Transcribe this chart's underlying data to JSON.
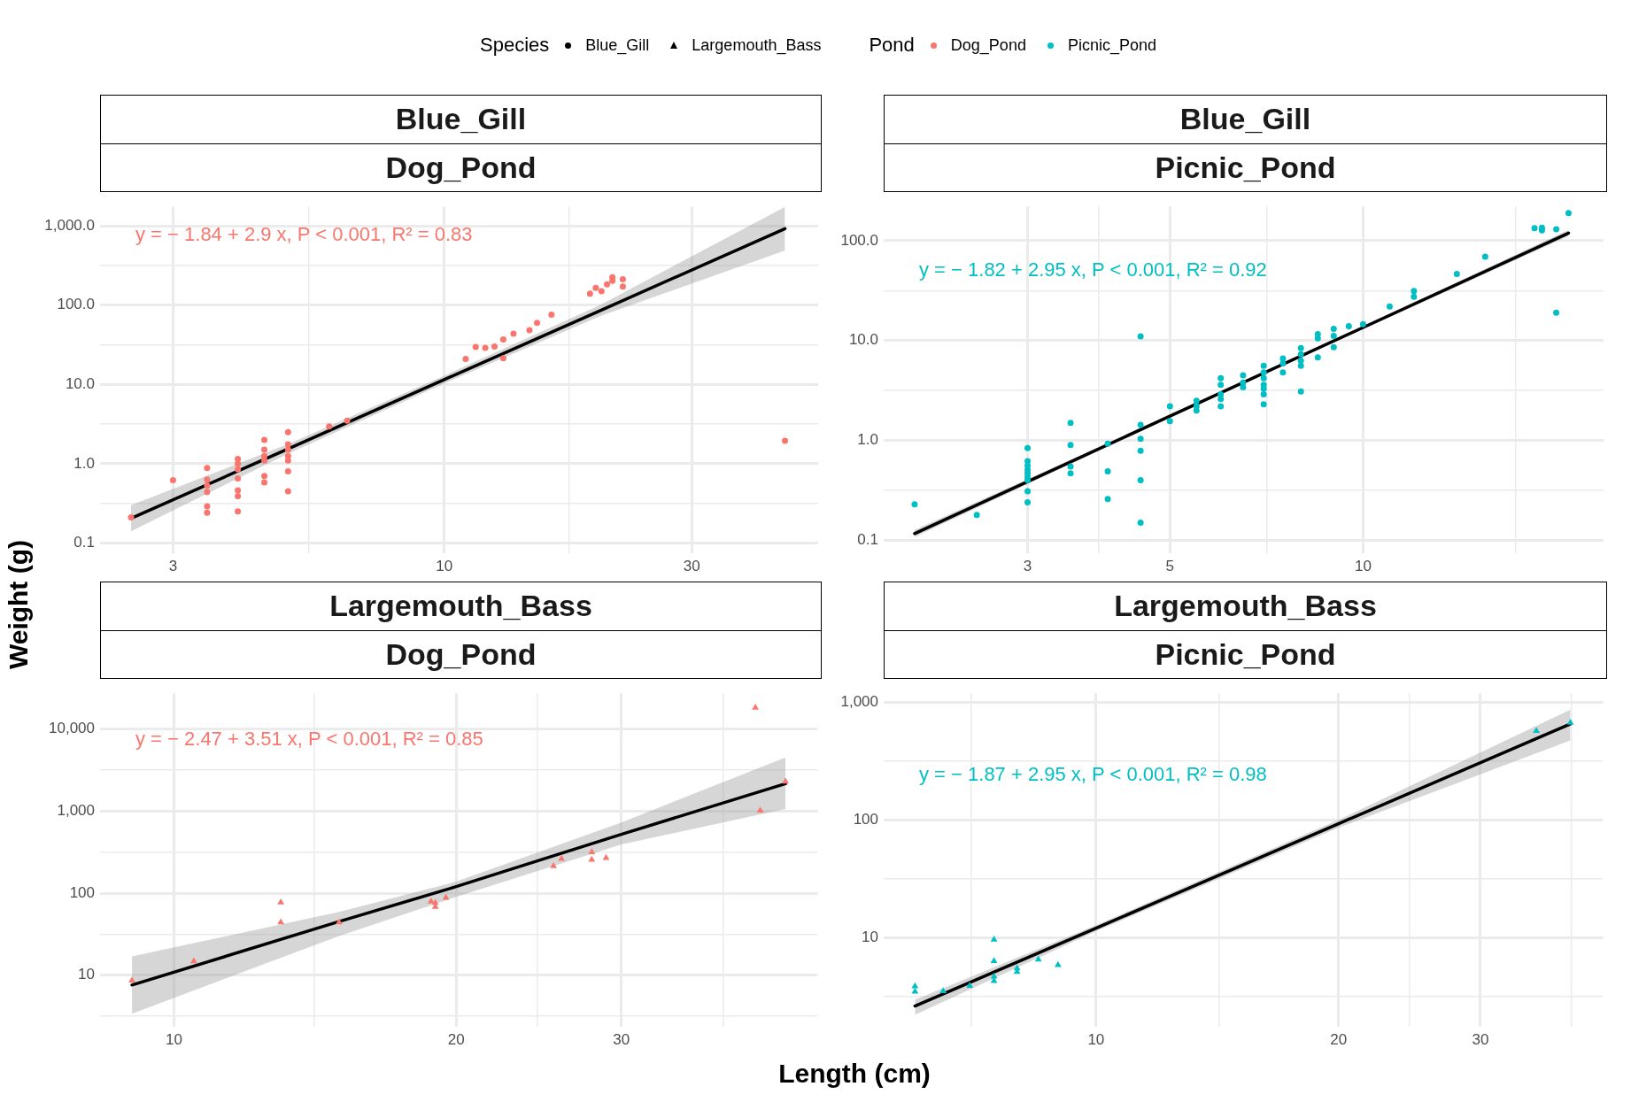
{
  "chart_data": [
    {
      "type": "scatter",
      "title": "Blue_Gill",
      "subtitle": "Dog_Pond",
      "ylabel": "Weight (g)",
      "legend": "top",
      "legend_title": "Species",
      "marker": "circle",
      "log": "xy",
      "grid": true,
      "xlim": [
        2.17,
        52.6
      ],
      "ylim": [
        0.075,
        1762
      ],
      "xticks": [
        3,
        {
          "value": 5.48,
          "label": null
        },
        10,
        {
          "value": 17.4,
          "label": null
        },
        30
      ],
      "yticks": [
        {
          "value": 0.1,
          "label": "0.1"
        },
        {
          "value": 0.316,
          "label": null
        },
        {
          "value": 1,
          "label": "1.0"
        },
        {
          "value": 3.16,
          "label": null
        },
        {
          "value": 10,
          "label": "10.0"
        },
        {
          "value": 31.6,
          "label": null
        },
        {
          "value": 100,
          "label": "100.0"
        },
        {
          "value": 316,
          "label": null
        },
        {
          "value": 1000,
          "label": "1,000.0"
        }
      ],
      "annotations": [
        "y = − 1.84 + 2.9 x, P < 0.001, R² = 0.83"
      ],
      "series": [
        {
          "type": "scatter",
          "name": "Dog_Pond",
          "color": "#f8766d",
          "x": [
            2.49,
            3,
            3.49,
            3.49,
            3.49,
            3.49,
            3.49,
            3.49,
            4,
            4,
            4,
            4,
            4,
            4,
            4,
            4.5,
            4.5,
            4.5,
            4.5,
            4.5,
            4.5,
            5,
            5,
            5,
            5,
            5,
            5,
            5,
            6,
            6.5,
            11,
            11.5,
            12,
            12.5,
            13,
            13,
            13.6,
            14.6,
            15.1,
            16.1,
            19.1,
            19.6,
            20.1,
            20.6,
            21.1,
            21.1,
            22.1,
            22.1,
            45.4
          ],
          "values": [
            0.21,
            0.62,
            0.88,
            0.63,
            0.53,
            0.44,
            0.29,
            0.24,
            1.15,
            1,
            0.85,
            0.65,
            0.46,
            0.39,
            0.25,
            2,
            1.5,
            1.25,
            1.1,
            0.7,
            0.58,
            2.5,
            1.75,
            1.5,
            1.25,
            1.1,
            0.8,
            0.45,
            2.95,
            3.5,
            21,
            29.7,
            29,
            30,
            37,
            21.4,
            43.8,
            48.5,
            60,
            76,
            140,
            165,
            150,
            183,
            203,
            225,
            212,
            172,
            1.94
          ]
        },
        {
          "type": "line",
          "marker": "none",
          "color": "#000000",
          "x": [
            2.49,
            5,
            10,
            20,
            45.4
          ],
          "values": [
            0.204,
            1.54,
            11.5,
            85.7,
            922
          ],
          "lower": [
            0.14,
            1.34,
            10.3,
            73,
            490
          ],
          "upper": [
            0.3,
            1.77,
            12.9,
            101,
            1735
          ]
        }
      ]
    },
    {
      "type": "scatter",
      "title": "Blue_Gill",
      "subtitle": "Picnic_Pond",
      "legend": "top",
      "legend_title": "Pond",
      "marker": "circle",
      "log": "xy",
      "grid": true,
      "xlim": [
        1.79,
        23.7
      ],
      "ylim": [
        0.075,
        220
      ],
      "xticks": [
        3,
        {
          "value": 3.87,
          "label": null
        },
        5,
        {
          "value": 7.07,
          "label": null
        },
        10,
        {
          "value": 17.3,
          "label": null
        }
      ],
      "yticks": [
        {
          "value": 0.1,
          "label": "0.1"
        },
        {
          "value": 0.316,
          "label": null
        },
        {
          "value": 1,
          "label": "1.0"
        },
        {
          "value": 3.16,
          "label": null
        },
        {
          "value": 10,
          "label": "10.0"
        },
        {
          "value": 31.6,
          "label": null
        },
        {
          "value": 100,
          "label": "100.0"
        }
      ],
      "annotations": [
        "y = − 1.82 + 2.95 x, P < 0.001, R² = 0.92"
      ],
      "series": [
        {
          "type": "scatter",
          "name": "Picnic_Pond",
          "color": "#00bfc4",
          "x": [
            2,
            2.5,
            3,
            3,
            3,
            3,
            3,
            3,
            3,
            3,
            3,
            3.5,
            3.5,
            3.5,
            3.5,
            4,
            4,
            4,
            4.5,
            4.5,
            4.5,
            4.5,
            4.5,
            4.5,
            5,
            5,
            5.5,
            5.5,
            5.5,
            6,
            6,
            6,
            6,
            6,
            6.5,
            6.5,
            6.5,
            7,
            7,
            7,
            7,
            7,
            7,
            7,
            7.5,
            7.5,
            7.5,
            8,
            8,
            8,
            8,
            8,
            8.5,
            8.5,
            8.5,
            9,
            9,
            9,
            9.5,
            10,
            11,
            12,
            12,
            14,
            15.5,
            18.5,
            19,
            19,
            20,
            20,
            20.9
          ],
          "values": [
            0.23,
            0.18,
            0.84,
            0.62,
            0.56,
            0.51,
            0.47,
            0.43,
            0.4,
            0.31,
            0.24,
            1.5,
            0.9,
            0.55,
            0.47,
            0.93,
            0.49,
            0.26,
            11,
            1.43,
            1.04,
            0.79,
            0.4,
            0.15,
            2.2,
            1.56,
            2.5,
            2.2,
            2,
            4.2,
            3.6,
            2.9,
            2.6,
            2.2,
            4.5,
            3.8,
            3.4,
            5.6,
            4.8,
            4.2,
            3.6,
            3.3,
            2.9,
            2.3,
            6.6,
            5.9,
            4.8,
            8.4,
            7.3,
            6.3,
            5.6,
            3.1,
            11.6,
            10.5,
            6.8,
            13.1,
            11.1,
            8.6,
            13.9,
            14.6,
            21.9,
            31.3,
            27.4,
            46.5,
            69,
            133,
            135,
            127,
            130,
            19,
            189
          ]
        },
        {
          "type": "line",
          "marker": "none",
          "color": "#000000",
          "x": [
            2,
            5,
            10,
            20.9
          ],
          "values": [
            0.117,
            1.75,
            13.5,
            119
          ],
          "lower": [
            0.108,
            1.7,
            13,
            111
          ],
          "upper": [
            0.127,
            1.8,
            14,
            128
          ]
        }
      ]
    },
    {
      "type": "scatter",
      "title": "Largemouth_Bass",
      "subtitle": "Dog_Pond",
      "xlabel": "Length (cm)",
      "marker": "triangle",
      "log": "xy",
      "grid": true,
      "xlim": [
        8.34,
        48.6
      ],
      "ylim": [
        2.38,
        27200
      ],
      "xticks": [
        10,
        {
          "value": 14.1,
          "label": null
        },
        20,
        {
          "value": 24.4,
          "label": null
        },
        30,
        {
          "value": 38.5,
          "label": null
        }
      ],
      "yticks": [
        {
          "value": 3.16,
          "label": null
        },
        {
          "value": 10,
          "label": "10"
        },
        {
          "value": 31.6,
          "label": null
        },
        {
          "value": 100,
          "label": "100"
        },
        {
          "value": 316,
          "label": null
        },
        {
          "value": 1000,
          "label": "1,000"
        },
        {
          "value": 3162,
          "label": null
        },
        {
          "value": 10000,
          "label": "10,000"
        }
      ],
      "annotations": [
        "y = − 2.47 + 3.51 x, P < 0.001, R² = 0.85"
      ],
      "series": [
        {
          "type": "scatter",
          "color": "#f8766d",
          "x": [
            9.02,
            10.5,
            13,
            13,
            15,
            18.8,
            19,
            19,
            19.5,
            25.4,
            25.9,
            27.9,
            27.9,
            28.9,
            41.7,
            42.2,
            44.9
          ],
          "values": [
            8.6,
            14.8,
            77,
            44,
            44,
            79,
            76,
            68,
            88,
            213,
            262,
            316,
            255,
            269,
            18100,
            1014,
            2290
          ]
        },
        {
          "type": "line",
          "marker": "none",
          "color": "#000000",
          "x": [
            9.02,
            15,
            20,
            30,
            44.9
          ],
          "values": [
            7.6,
            45,
            120,
            520,
            2150
          ],
          "lower": [
            3.4,
            30,
            90,
            392,
            1057
          ],
          "upper": [
            17,
            59,
            138,
            724,
            4500
          ]
        }
      ]
    },
    {
      "type": "scatter",
      "title": "Largemouth_Bass",
      "subtitle": "Picnic_Pond",
      "marker": "triangle",
      "log": "xy",
      "grid": true,
      "xlim": [
        5.45,
        42.6
      ],
      "ylim": [
        1.75,
        1197
      ],
      "xticks": [
        {
          "value": 7,
          "label": null
        },
        10,
        {
          "value": 14.2,
          "label": null
        },
        20,
        {
          "value": 24.5,
          "label": null
        },
        30,
        {
          "value": 38.9,
          "label": null
        }
      ],
      "yticks": [
        {
          "value": 3.16,
          "label": null
        },
        {
          "value": 10,
          "label": "10"
        },
        {
          "value": 31.6,
          "label": null
        },
        {
          "value": 100,
          "label": "100"
        },
        {
          "value": 316,
          "label": null
        },
        {
          "value": 1000,
          "label": "1,000"
        }
      ],
      "annotations": [
        "y = − 1.87 + 2.95 x, P < 0.001, R² = 0.98"
      ],
      "series": [
        {
          "type": "scatter",
          "color": "#00bfc4",
          "x": [
            5.96,
            5.96,
            6.46,
            6.97,
            7.47,
            7.47,
            7.47,
            7.47,
            7.98,
            7.98,
            8.48,
            8.97,
            35.2,
            38.8
          ],
          "values": [
            3.85,
            3.47,
            3.5,
            3.88,
            9.6,
            6.3,
            4.65,
            4.27,
            5.45,
            5.1,
            6.5,
            5.83,
            573,
            673
          ]
        },
        {
          "type": "line",
          "marker": "none",
          "color": "#000000",
          "x": [
            5.96,
            10,
            20,
            38.8
          ],
          "values": [
            2.61,
            12,
            92.9,
            656
          ],
          "lower": [
            2.2,
            11.3,
            86,
            474
          ],
          "upper": [
            2.95,
            12.7,
            100,
            868
          ]
        }
      ]
    }
  ]
}
